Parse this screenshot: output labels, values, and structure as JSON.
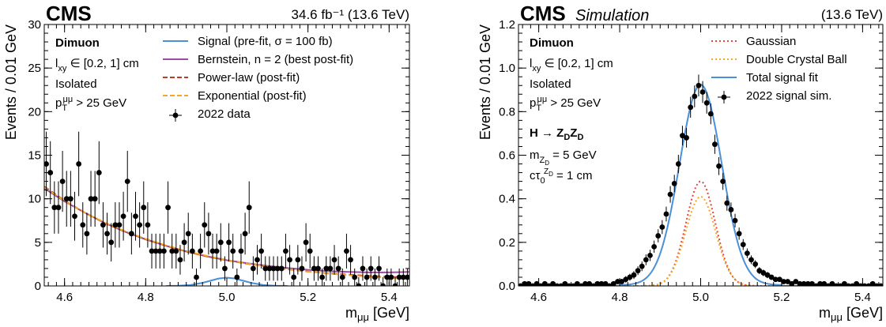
{
  "chart_data": [
    {
      "type": "line",
      "panel": "left",
      "experiment": "CMS",
      "lumi_label": "34.6 fb⁻¹ (13.6 TeV)",
      "xlabel": "m_μμ [GeV]",
      "xlabel_main": "m",
      "xlabel_sub": "μμ",
      "xlabel_unit": "[GeV]",
      "ylabel": "Events / 0.01 GeV",
      "xlim": [
        4.55,
        5.45
      ],
      "ylim": [
        0,
        30
      ],
      "xticks": [
        4.6,
        4.8,
        5.0,
        5.2,
        5.4
      ],
      "xtick_labels": [
        "4.6",
        "4.8",
        "5.0",
        "5.2",
        "5.4"
      ],
      "yticks": [
        0,
        5,
        10,
        15,
        20,
        25,
        30
      ],
      "ytick_labels": [
        "0",
        "5",
        "10",
        "15",
        "20",
        "25",
        "30"
      ],
      "annotations": [
        {
          "text": "Dimuon",
          "bold": true
        },
        {
          "text": "l_xy ∈ [0.2, 1] cm",
          "main": "l",
          "sub": "xy",
          "rest": " ∈ [0.2, 1] cm"
        },
        {
          "text": "Isolated"
        },
        {
          "text": "p_T^μμ > 25 GeV",
          "main": "p",
          "sub": "T",
          "sup": "μμ",
          "rest": " > 25 GeV"
        }
      ],
      "legend": [
        {
          "label": "Signal (pre-fit, σ =  100 fb)",
          "style": "solid",
          "color": "#4a90d9"
        },
        {
          "label": "Bernstein, n = 2 (best post-fit)",
          "style": "solid",
          "color": "#9b4c9e"
        },
        {
          "label": "Power-law (post-fit)",
          "style": "dashed",
          "color": "#c0392b"
        },
        {
          "label": "Exponential (post-fit)",
          "style": "dashed",
          "color": "#f5a623"
        },
        {
          "label": "2022 data",
          "style": "marker",
          "color": "#000000"
        }
      ],
      "legend_placement": "top-right",
      "series": [
        {
          "name": "2022 data",
          "kind": "points",
          "color": "#000000",
          "x": [
            4.555,
            4.565,
            4.575,
            4.585,
            4.595,
            4.605,
            4.615,
            4.625,
            4.635,
            4.645,
            4.655,
            4.665,
            4.675,
            4.685,
            4.695,
            4.705,
            4.715,
            4.725,
            4.735,
            4.745,
            4.755,
            4.765,
            4.775,
            4.785,
            4.795,
            4.805,
            4.815,
            4.825,
            4.835,
            4.845,
            4.855,
            4.865,
            4.875,
            4.885,
            4.895,
            4.905,
            4.915,
            4.925,
            4.935,
            4.945,
            4.955,
            4.965,
            4.975,
            4.985,
            4.995,
            5.005,
            5.015,
            5.025,
            5.035,
            5.045,
            5.055,
            5.065,
            5.075,
            5.085,
            5.095,
            5.105,
            5.115,
            5.125,
            5.135,
            5.145,
            5.155,
            5.165,
            5.175,
            5.185,
            5.195,
            5.205,
            5.215,
            5.225,
            5.235,
            5.245,
            5.255,
            5.265,
            5.275,
            5.285,
            5.295,
            5.305,
            5.315,
            5.325,
            5.335,
            5.345,
            5.355,
            5.365,
            5.375,
            5.385,
            5.395,
            5.405,
            5.415,
            5.425,
            5.435,
            5.445
          ],
          "y": [
            14,
            13,
            9,
            9,
            12,
            10,
            10,
            8,
            14,
            7,
            6,
            10,
            10,
            13,
            7,
            6,
            5,
            7,
            7,
            8,
            12,
            6,
            8,
            7,
            9,
            7,
            4,
            4,
            4,
            4,
            9,
            4,
            4,
            3,
            5,
            6,
            4,
            1,
            4,
            7,
            6,
            4,
            4,
            5,
            2,
            5,
            4,
            1,
            4,
            6,
            9,
            2,
            3,
            4,
            2,
            2,
            2,
            2,
            2,
            4,
            3,
            1,
            3,
            2,
            5,
            4,
            2,
            2,
            1,
            2,
            2,
            3,
            2,
            1,
            4,
            3,
            1,
            0,
            2,
            1,
            2,
            1,
            2,
            0,
            1,
            1,
            0,
            1,
            1,
            1
          ],
          "err": [
            3.7,
            3.6,
            3.0,
            3.0,
            3.5,
            3.2,
            3.2,
            2.8,
            3.7,
            2.6,
            2.4,
            3.2,
            3.2,
            3.6,
            2.6,
            2.4,
            2.2,
            2.6,
            2.6,
            2.8,
            3.5,
            2.4,
            2.8,
            2.6,
            3.0,
            2.6,
            2.0,
            2.0,
            2.0,
            2.0,
            3.0,
            2.0,
            2.0,
            1.7,
            2.2,
            2.4,
            2.0,
            1.0,
            2.0,
            2.6,
            2.4,
            2.0,
            2.0,
            2.2,
            1.4,
            2.2,
            2.0,
            1.0,
            2.0,
            2.4,
            3.0,
            1.4,
            1.7,
            2.0,
            1.4,
            1.4,
            1.4,
            1.4,
            1.4,
            2.0,
            1.7,
            1.0,
            1.7,
            1.4,
            2.2,
            2.0,
            1.4,
            1.4,
            1.0,
            1.4,
            1.4,
            1.7,
            1.4,
            1.0,
            2.0,
            1.7,
            1.0,
            1.0,
            1.4,
            1.0,
            1.4,
            1.0,
            1.4,
            1.0,
            1.0,
            1.0,
            1.0,
            1.0,
            1.0,
            1.0
          ]
        },
        {
          "name": "Signal (pre-fit, σ =  100 fb)",
          "kind": "curve",
          "color": "#4a90d9",
          "style": "solid",
          "x": [
            4.85,
            4.88,
            4.91,
            4.94,
            4.96,
            4.98,
            5.0,
            5.02,
            5.04,
            5.06,
            5.09,
            5.12,
            5.15
          ],
          "y": [
            0,
            0.02,
            0.1,
            0.35,
            0.6,
            0.85,
            0.95,
            0.85,
            0.6,
            0.35,
            0.1,
            0.02,
            0
          ]
        },
        {
          "name": "Bernstein, n = 2 (best post-fit)",
          "kind": "curve",
          "color": "#9b4c9e",
          "style": "solid",
          "x": [
            4.55,
            4.6,
            4.65,
            4.7,
            4.75,
            4.8,
            4.85,
            4.9,
            4.95,
            5.0,
            5.05,
            5.1,
            5.15,
            5.2,
            5.25,
            5.3,
            5.35,
            5.4,
            5.45
          ],
          "y": [
            11.2,
            9.7,
            8.4,
            7.2,
            6.2,
            5.35,
            4.6,
            3.95,
            3.4,
            2.95,
            2.6,
            2.3,
            2.05,
            1.85,
            1.7,
            1.6,
            1.55,
            1.55,
            1.6
          ]
        },
        {
          "name": "Power-law (post-fit)",
          "kind": "curve",
          "color": "#c0392b",
          "style": "dashed",
          "x": [
            4.55,
            4.6,
            4.65,
            4.7,
            4.75,
            4.8,
            4.85,
            4.9,
            4.95,
            5.0,
            5.05,
            5.1,
            5.15,
            5.2,
            5.25,
            5.3,
            5.35,
            5.4,
            5.45
          ],
          "y": [
            11.4,
            9.8,
            8.4,
            7.2,
            6.2,
            5.35,
            4.6,
            3.95,
            3.4,
            2.95,
            2.55,
            2.2,
            1.9,
            1.65,
            1.45,
            1.3,
            1.15,
            1.05,
            0.95
          ]
        },
        {
          "name": "Exponential (post-fit)",
          "kind": "curve",
          "color": "#f5a623",
          "style": "dashed",
          "x": [
            4.55,
            4.6,
            4.65,
            4.7,
            4.75,
            4.8,
            4.85,
            4.9,
            4.95,
            5.0,
            5.05,
            5.1,
            5.15,
            5.2,
            5.25,
            5.3,
            5.35,
            5.4,
            5.45
          ],
          "y": [
            11.3,
            9.75,
            8.4,
            7.25,
            6.25,
            5.4,
            4.65,
            4.0,
            3.45,
            2.98,
            2.57,
            2.22,
            1.91,
            1.65,
            1.42,
            1.23,
            1.06,
            0.92,
            0.8
          ]
        }
      ]
    },
    {
      "type": "line",
      "panel": "right",
      "experiment": "CMS",
      "experiment_sub": "Simulation",
      "lumi_label": "(13.6 TeV)",
      "xlabel": "m_μμ [GeV]",
      "xlabel_main": "m",
      "xlabel_sub": "μμ",
      "xlabel_unit": "[GeV]",
      "ylabel": "Events / 0.01 GeV",
      "xlim": [
        4.55,
        5.45
      ],
      "ylim": [
        0,
        1.2
      ],
      "xticks": [
        4.6,
        4.8,
        5.0,
        5.2,
        5.4
      ],
      "xtick_labels": [
        "4.6",
        "4.8",
        "5.0",
        "5.2",
        "5.4"
      ],
      "yticks": [
        0,
        0.2,
        0.4,
        0.6,
        0.8,
        1.0,
        1.2
      ],
      "ytick_labels": [
        "0.0",
        "0.2",
        "0.4",
        "0.6",
        "0.8",
        "1.0",
        "1.2"
      ],
      "annotations": [
        {
          "text": "Dimuon",
          "bold": true
        },
        {
          "text": "l_xy ∈ [0.2, 1] cm",
          "main": "l",
          "sub": "xy",
          "rest": " ∈ [0.2, 1] cm"
        },
        {
          "text": "Isolated"
        },
        {
          "text": "p_T^μμ > 25 GeV",
          "main": "p",
          "sub": "T",
          "sup": "μμ",
          "rest": " > 25 GeV"
        },
        {
          "text": "H → Z_D Z_D",
          "bold": true,
          "parts": [
            "H → Z",
            "D",
            "Z",
            "D"
          ]
        },
        {
          "text": "m_ZD = 5 GeV",
          "main": "m",
          "sub": "Z",
          "subsub": "D",
          "rest": " = 5 GeV"
        },
        {
          "text": "cτ_0^ZD = 1 cm",
          "main": "cτ",
          "sub": "0",
          "sup": "Z",
          "supsub": "D",
          "rest": " = 1 cm"
        }
      ],
      "legend": [
        {
          "label": "Gaussian",
          "style": "dotted",
          "color": "#e8443a"
        },
        {
          "label": "Double Crystal Ball",
          "style": "dotted",
          "color": "#f5a623"
        },
        {
          "label": "Total signal fit",
          "style": "solid",
          "color": "#4a90d9"
        },
        {
          "label": "2022 signal sim.",
          "style": "marker",
          "color": "#000000"
        }
      ],
      "legend_placement": "top-right",
      "signal_shape": {
        "mean": 5.0,
        "width_total": 0.052,
        "total_amp": 0.92,
        "gauss_amp": 0.48,
        "gauss_sigma": 0.036,
        "dcb_amp": 0.41,
        "dcb_sigma": 0.037
      },
      "series": [
        {
          "name": "2022 signal sim.",
          "kind": "points",
          "color": "#000000",
          "x": [
            4.555,
            4.565,
            4.575,
            4.585,
            4.595,
            4.605,
            4.615,
            4.625,
            4.635,
            4.645,
            4.655,
            4.665,
            4.675,
            4.685,
            4.695,
            4.705,
            4.715,
            4.725,
            4.735,
            4.745,
            4.755,
            4.765,
            4.775,
            4.785,
            4.795,
            4.805,
            4.815,
            4.825,
            4.835,
            4.845,
            4.855,
            4.865,
            4.875,
            4.885,
            4.895,
            4.905,
            4.915,
            4.925,
            4.935,
            4.945,
            4.955,
            4.965,
            4.975,
            4.985,
            4.995,
            5.005,
            5.015,
            5.025,
            5.035,
            5.045,
            5.055,
            5.065,
            5.075,
            5.085,
            5.095,
            5.105,
            5.115,
            5.125,
            5.135,
            5.145,
            5.155,
            5.165,
            5.175,
            5.185,
            5.195,
            5.205,
            5.215,
            5.225,
            5.235,
            5.245,
            5.255,
            5.265,
            5.275,
            5.285,
            5.295,
            5.305,
            5.315,
            5.325,
            5.335,
            5.345,
            5.355,
            5.365,
            5.375,
            5.385,
            5.395,
            5.405,
            5.415,
            5.425,
            5.435,
            5.445
          ],
          "y": [
            0.0,
            0.01,
            0.01,
            0.0,
            0.01,
            0.0,
            0.01,
            0.0,
            0.01,
            0.0,
            0.0,
            0.01,
            0.0,
            0.0,
            0.01,
            0.0,
            0.01,
            0.01,
            0.0,
            0.01,
            0.01,
            0.01,
            0.0,
            0.01,
            0.02,
            0.02,
            0.03,
            0.04,
            0.05,
            0.07,
            0.09,
            0.12,
            0.14,
            0.18,
            0.23,
            0.27,
            0.33,
            0.42,
            0.47,
            0.56,
            0.69,
            0.68,
            0.82,
            0.87,
            0.92,
            0.89,
            0.84,
            0.79,
            0.65,
            0.55,
            0.48,
            0.38,
            0.35,
            0.3,
            0.24,
            0.19,
            0.15,
            0.12,
            0.1,
            0.07,
            0.06,
            0.05,
            0.04,
            0.03,
            0.03,
            0.02,
            0.02,
            0.01,
            0.02,
            0.01,
            0.01,
            0.01,
            0.01,
            0.0,
            0.01,
            0.01,
            0.0,
            0.01,
            0.0,
            0.0,
            0.01,
            0.0,
            0.0,
            0.01,
            0.0,
            0.0,
            0.0,
            0.01,
            0.0,
            0.0
          ],
          "err": [
            0.005,
            0.01,
            0.01,
            0.005,
            0.01,
            0.005,
            0.01,
            0.005,
            0.01,
            0.005,
            0.005,
            0.01,
            0.005,
            0.005,
            0.01,
            0.005,
            0.01,
            0.01,
            0.005,
            0.01,
            0.01,
            0.01,
            0.005,
            0.01,
            0.012,
            0.012,
            0.015,
            0.016,
            0.018,
            0.02,
            0.022,
            0.025,
            0.026,
            0.028,
            0.03,
            0.032,
            0.034,
            0.038,
            0.04,
            0.042,
            0.045,
            0.045,
            0.048,
            0.05,
            0.05,
            0.05,
            0.049,
            0.048,
            0.044,
            0.041,
            0.039,
            0.035,
            0.033,
            0.031,
            0.028,
            0.025,
            0.022,
            0.02,
            0.018,
            0.016,
            0.015,
            0.014,
            0.012,
            0.011,
            0.011,
            0.01,
            0.01,
            0.008,
            0.01,
            0.008,
            0.008,
            0.008,
            0.008,
            0.005,
            0.008,
            0.008,
            0.005,
            0.008,
            0.005,
            0.005,
            0.008,
            0.005,
            0.005,
            0.008,
            0.005,
            0.005,
            0.005,
            0.008,
            0.005,
            0.005
          ]
        }
      ]
    }
  ]
}
